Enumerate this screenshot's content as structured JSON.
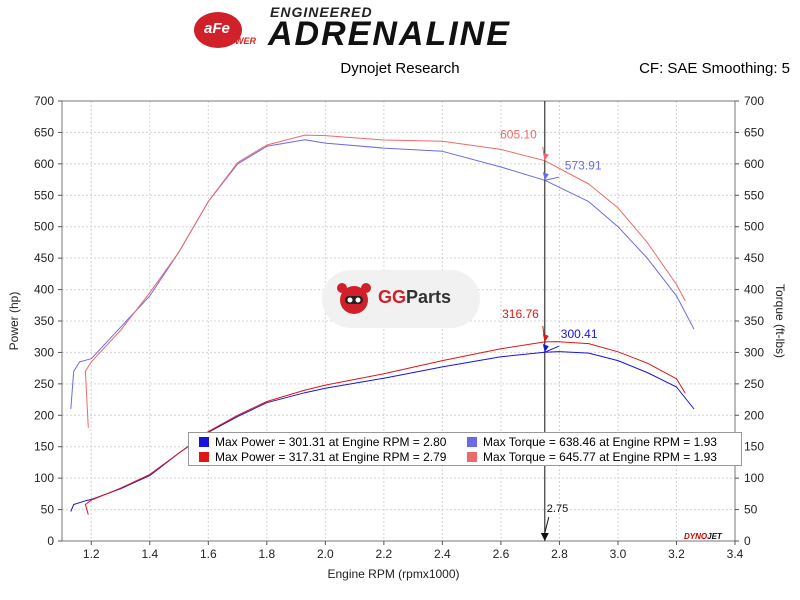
{
  "header": {
    "logo_brand": "aFe",
    "logo_power": "POWER",
    "logo_tagline": "ENGINEERED",
    "logo_title": "ADRENALINE",
    "subtitle_left": "Dynojet Research",
    "subtitle_right": "CF: SAE Smoothing: 5"
  },
  "watermark": {
    "gg": "GG",
    "parts": "Parts"
  },
  "legend": [
    {
      "label": "Max Power = 301.31 at Engine RPM = 2.80",
      "color": "#1515e0"
    },
    {
      "label": "Max Power = 317.31 at Engine RPM = 2.79",
      "color": "#e01515"
    },
    {
      "label": "Max Torque = 638.46 at Engine RPM = 1.93",
      "color": "#6a6ae8"
    },
    {
      "label": "Max Torque = 645.77 at Engine RPM = 1.93",
      "color": "#ee6a6a"
    }
  ],
  "footer": {
    "dynojet_a": "DYNO",
    "dynojet_b": "JET"
  },
  "chart_data": {
    "type": "line",
    "xlabel": "Engine RPM (rpmx1000)",
    "ylabel_left": "Power (hp)",
    "ylabel_right": "Torque (ft-lbs)",
    "xlim": [
      1.1,
      3.4
    ],
    "ylim": [
      0,
      700
    ],
    "x_ticks": [
      "1.2",
      "1.4",
      "1.6",
      "1.8",
      "2.0",
      "2.2",
      "2.4",
      "2.6",
      "2.8",
      "3.0",
      "3.2",
      "3.4"
    ],
    "y_ticks": [
      "0",
      "50",
      "100",
      "150",
      "200",
      "250",
      "300",
      "350",
      "400",
      "450",
      "500",
      "550",
      "600",
      "650",
      "700"
    ],
    "grid": true,
    "cursor": {
      "x": 2.75,
      "label": "2.75"
    },
    "annotations": [
      {
        "text": "605.10",
        "x": 2.75,
        "y": 605.1,
        "color": "#ee6a6a"
      },
      {
        "text": "573.91",
        "x": 2.75,
        "y": 573.91,
        "color": "#6a6ae8"
      },
      {
        "text": "316.76",
        "x": 2.75,
        "y": 316.76,
        "color": "#e01515"
      },
      {
        "text": "300.41",
        "x": 2.75,
        "y": 300.41,
        "color": "#1515e0"
      }
    ],
    "series": [
      {
        "color": "#1515e0",
        "x": [
          1.13,
          1.14,
          1.18,
          1.2,
          1.3,
          1.4,
          1.5,
          1.6,
          1.7,
          1.8,
          1.93,
          2.0,
          2.2,
          2.4,
          2.6,
          2.75,
          2.8,
          2.9,
          3.0,
          3.1,
          3.2,
          3.26
        ],
        "y": [
          47,
          58,
          64,
          66,
          83,
          104,
          140,
          173,
          198,
          220,
          236,
          243,
          259,
          277,
          293,
          300.41,
          301.3,
          299,
          287,
          268,
          245,
          210
        ]
      },
      {
        "color": "#e01515",
        "x": [
          1.19,
          1.18,
          1.2,
          1.3,
          1.4,
          1.5,
          1.6,
          1.7,
          1.8,
          1.93,
          2.0,
          2.2,
          2.4,
          2.6,
          2.75,
          2.79,
          2.9,
          3.0,
          3.1,
          3.2,
          3.23
        ],
        "y": [
          42,
          58,
          65,
          84,
          106,
          140,
          174,
          200,
          222,
          240,
          248,
          266,
          287,
          306,
          316.76,
          317.3,
          314,
          301,
          283,
          258,
          235
        ]
      },
      {
        "color": "#6a6ae8",
        "x": [
          1.13,
          1.14,
          1.16,
          1.2,
          1.3,
          1.4,
          1.5,
          1.6,
          1.7,
          1.8,
          1.93,
          2.0,
          2.2,
          2.4,
          2.6,
          2.75,
          2.9,
          3.0,
          3.1,
          3.2,
          3.26
        ],
        "y": [
          210,
          270,
          285,
          290,
          340,
          390,
          460,
          540,
          600,
          628,
          638.5,
          633,
          625,
          620,
          595,
          573.9,
          540,
          500,
          450,
          390,
          337
        ]
      },
      {
        "color": "#ee6a6a",
        "x": [
          1.19,
          1.18,
          1.2,
          1.3,
          1.4,
          1.5,
          1.6,
          1.7,
          1.8,
          1.93,
          2.0,
          2.2,
          2.4,
          2.6,
          2.75,
          2.9,
          3.0,
          3.1,
          3.2,
          3.23
        ],
        "y": [
          180,
          270,
          285,
          335,
          395,
          460,
          540,
          602,
          630,
          645.8,
          645,
          638,
          636,
          623,
          605.1,
          568,
          530,
          475,
          408,
          382
        ]
      }
    ]
  }
}
